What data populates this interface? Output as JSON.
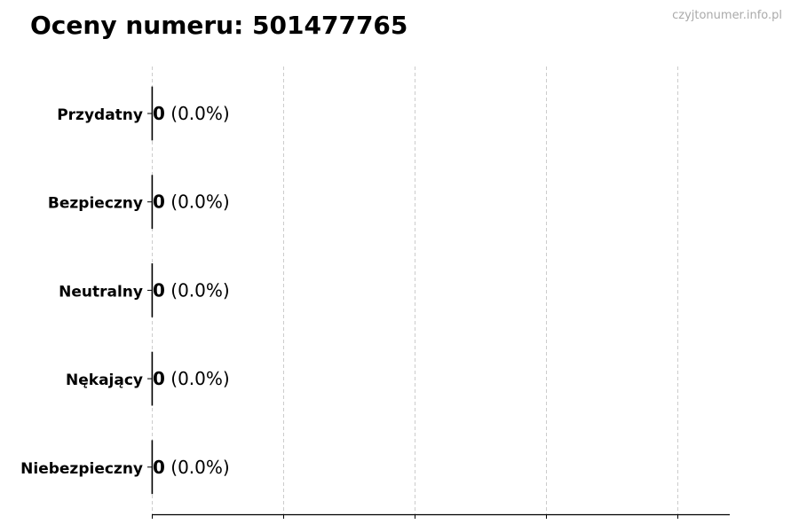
{
  "watermark": "czyjtonumer.info.pl",
  "chart_data": {
    "type": "bar",
    "orientation": "horizontal",
    "title": "Oceny numeru: 501477765",
    "categories": [
      "Przydatny",
      "Bezpieczny",
      "Neutralny",
      "Nękający",
      "Niebezpieczny"
    ],
    "values": [
      0,
      0,
      0,
      0,
      0
    ],
    "data_labels": [
      {
        "count": "0",
        "percent": "(0.0%)"
      },
      {
        "count": "0",
        "percent": "(0.0%)"
      },
      {
        "count": "0",
        "percent": "(0.0%)"
      },
      {
        "count": "0",
        "percent": "(0.0%)"
      },
      {
        "count": "0",
        "percent": "(0.0%)"
      }
    ],
    "xlabel": "",
    "ylabel": "",
    "x_tick_labels_shown": false,
    "grid": "vertical dashed",
    "bar_edge_color": "#000000",
    "grid_color": "#cccccc"
  }
}
